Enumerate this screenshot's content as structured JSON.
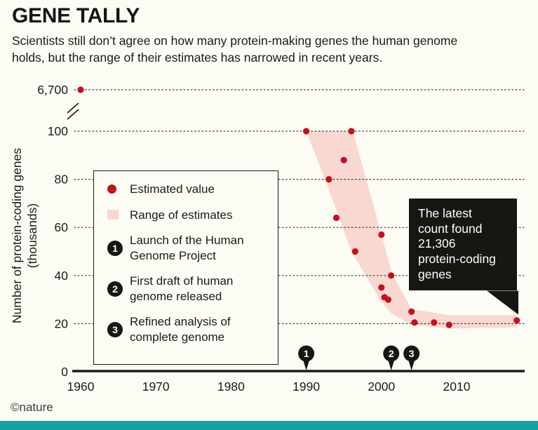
{
  "header": {
    "title": "GENE TALLY",
    "subtitle": "Scientists still don’t agree on how many protein-making genes the human genome holds, but the range of their estimates has narrowed in recent years."
  },
  "chart_data": {
    "type": "scatter",
    "title": "GENE TALLY",
    "ylabel_lines": [
      "Number of protein-coding genes",
      "(thousands)"
    ],
    "xlabel": "",
    "x_ticks": [
      1960,
      1970,
      1980,
      1990,
      2000,
      2010
    ],
    "y_ticks": [
      0,
      20,
      40,
      60,
      80,
      100
    ],
    "ylim": [
      0,
      100
    ],
    "grid": "dotted-horizontal",
    "broken_point": {
      "x": 1960,
      "value": 6700,
      "label": "6,700"
    },
    "points": [
      {
        "x": 1990,
        "y": 100
      },
      {
        "x": 1993,
        "y": 80
      },
      {
        "x": 1994,
        "y": 64
      },
      {
        "x": 1995,
        "y": 88
      },
      {
        "x": 1996,
        "y": 100
      },
      {
        "x": 1996.5,
        "y": 50
      },
      {
        "x": 2000,
        "y": 57
      },
      {
        "x": 2000,
        "y": 35
      },
      {
        "x": 2000.4,
        "y": 31
      },
      {
        "x": 2000.9,
        "y": 30
      },
      {
        "x": 2001.3,
        "y": 40
      },
      {
        "x": 2004,
        "y": 25
      },
      {
        "x": 2004.4,
        "y": 20.5
      },
      {
        "x": 2007,
        "y": 20.5
      },
      {
        "x": 2009,
        "y": 19.5
      },
      {
        "x": 2018,
        "y": 21.3
      }
    ],
    "band_upper": [
      [
        1990,
        100
      ],
      [
        1996.2,
        100
      ],
      [
        2000,
        57
      ],
      [
        2001.4,
        41
      ],
      [
        2004,
        26
      ],
      [
        2009,
        23.5
      ],
      [
        2018,
        23.5
      ]
    ],
    "band_lower": [
      [
        1990,
        100
      ],
      [
        1992.5,
        80
      ],
      [
        1996,
        50
      ],
      [
        2000,
        29
      ],
      [
        2001.4,
        24
      ],
      [
        2004,
        19.5
      ],
      [
        2009,
        18
      ],
      [
        2018,
        18.5
      ]
    ],
    "events": [
      {
        "n": "1",
        "x": 1990
      },
      {
        "n": "2",
        "x": 2001.3
      },
      {
        "n": "3",
        "x": 2004
      }
    ],
    "annotation": {
      "lines": [
        "The latest",
        "count found",
        "21,306",
        "protein-coding",
        "genes"
      ]
    },
    "colors": {
      "point": "#c0121f",
      "band": "#f8d8d0",
      "ink": "#1b1b19",
      "bubble": "#161613",
      "teal": "#15a2a0"
    }
  },
  "legend": {
    "items": [
      {
        "marker": "dot",
        "label": "Estimated value"
      },
      {
        "marker": "band",
        "label": "Range of estimates"
      },
      {
        "marker": "1",
        "label": "Launch of the Human Genome Project"
      },
      {
        "marker": "2",
        "label": "First draft of human genome released"
      },
      {
        "marker": "3",
        "label": "Refined analysis of complete genome"
      }
    ]
  },
  "footer": {
    "credit": "©nature"
  }
}
